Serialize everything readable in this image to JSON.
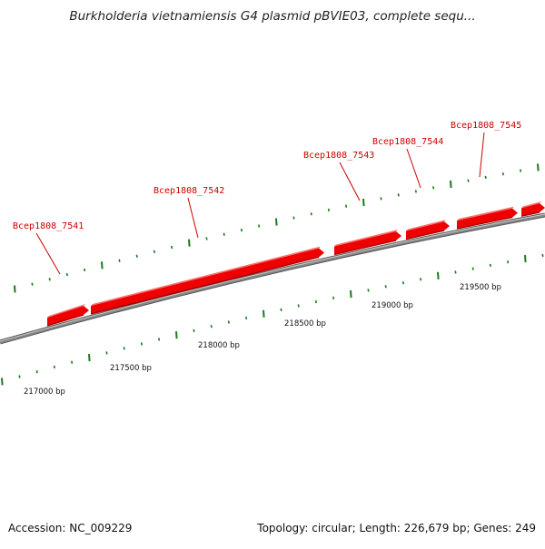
{
  "title": "Burkholderia vietnamiensis G4 plasmid pBVIE03, complete sequ...",
  "footer": {
    "accession": "Accession: NC_009229",
    "summary": "Topology: circular; Length: 226,679 bp; Genes: 249"
  },
  "colors": {
    "gene": "#ee0000",
    "gene_label": "#cc0000",
    "tick": "#1a7a1a",
    "backbone": "#888888"
  },
  "genes": [
    {
      "name": "Bcep1808_7541"
    },
    {
      "name": "Bcep1808_7542"
    },
    {
      "name": "Bcep1808_7543"
    },
    {
      "name": "Bcep1808_7544"
    },
    {
      "name": "Bcep1808_7545"
    }
  ],
  "positions": [
    {
      "label": "217000 bp"
    },
    {
      "label": "217500 bp"
    },
    {
      "label": "218000 bp"
    },
    {
      "label": "218500 bp"
    },
    {
      "label": "219000 bp"
    },
    {
      "label": "219500 bp"
    }
  ]
}
